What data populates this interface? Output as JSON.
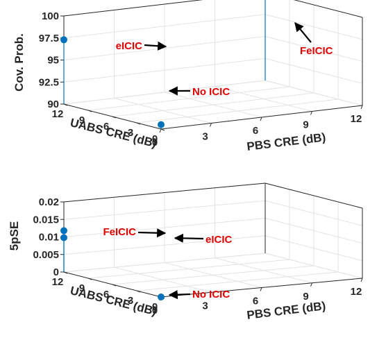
{
  "chart_data": [
    {
      "type": "scatter",
      "subtype": "stem3",
      "title": "",
      "xlabel": "PBS CRE (dB)",
      "ylabel": "UABS CRE (dB)",
      "zlabel": "Cov. Prob.",
      "x_ticks": [
        "0",
        "3",
        "6",
        "9",
        "12"
      ],
      "y_ticks": [
        "12",
        "9",
        "6",
        "3",
        "0"
      ],
      "z_ticks": [
        "90",
        "92.5",
        "95",
        "97.5",
        "100"
      ],
      "xlim": [
        0,
        12
      ],
      "ylim": [
        0,
        12
      ],
      "zlim": [
        90,
        100
      ],
      "grid": true,
      "marker_color": "#0072bd",
      "annotation_color": "#e00000",
      "points": [
        {
          "label": "No ICIC",
          "x": 0,
          "y": 0,
          "z": 90.5
        },
        {
          "label": "eICIC",
          "x": 0,
          "y": 12,
          "z": 97.3
        },
        {
          "label": "FeICIC",
          "x": 12,
          "y": 12,
          "z": 102.1
        }
      ]
    },
    {
      "type": "scatter",
      "subtype": "stem3",
      "title": "",
      "xlabel": "PBS CRE (dB)",
      "ylabel": "UABS CRE (dB)",
      "zlabel": "5pSE",
      "x_ticks": [
        "0",
        "3",
        "6",
        "9",
        "12"
      ],
      "y_ticks": [
        "12",
        "9",
        "6",
        "3",
        "0"
      ],
      "z_ticks": [
        "0",
        "0.005",
        "0.01",
        "0.015",
        "0.02"
      ],
      "xlim": [
        0,
        12
      ],
      "ylim": [
        0,
        12
      ],
      "zlim": [
        0,
        0.02
      ],
      "grid": true,
      "marker_color": "#0072bd",
      "annotation_color": "#e00000",
      "points": [
        {
          "label": "No ICIC",
          "x": 0,
          "y": 0,
          "z": 0
        },
        {
          "label": "eICIC",
          "x": 0,
          "y": 12,
          "z": 0.0098
        },
        {
          "label": "FeICIC",
          "x": 0,
          "y": 12,
          "z": 0.0118
        }
      ]
    }
  ]
}
